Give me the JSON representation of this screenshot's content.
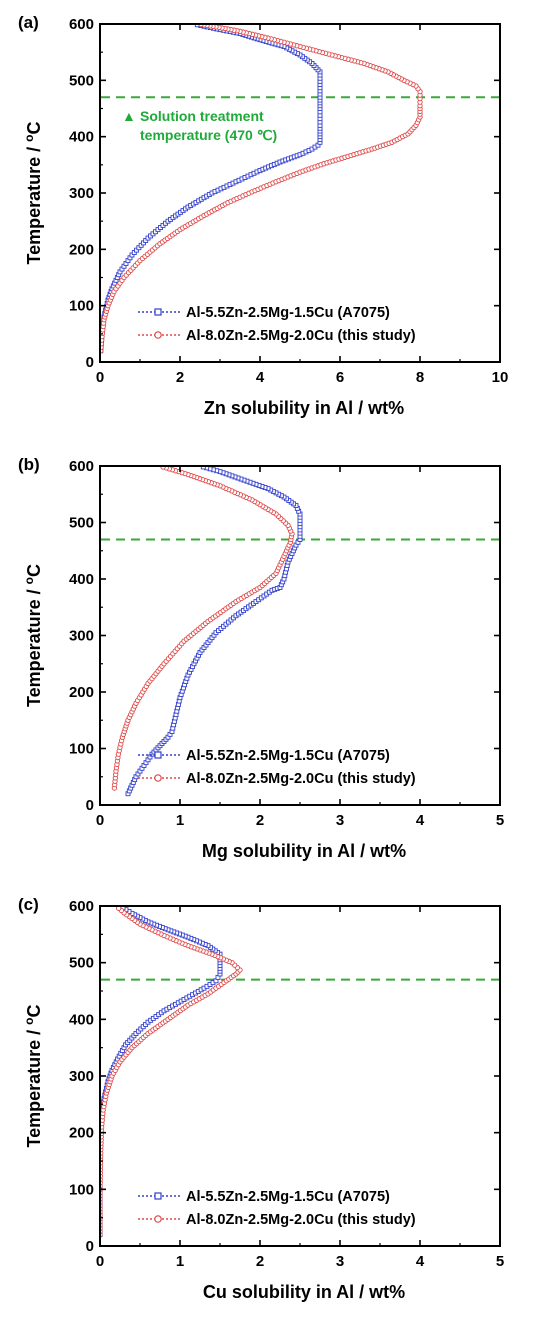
{
  "chart_data": [
    {
      "type": "line",
      "panel_label": "(a)",
      "xlabel": "Zn solubility in Al / wt%",
      "ylabel_main": "Temperature / ",
      "ylabel_sup": "o",
      "ylabel_unit": "C",
      "xlim": [
        0,
        10
      ],
      "ylim": [
        0,
        600
      ],
      "xticks": [
        0,
        2,
        4,
        6,
        8,
        10
      ],
      "yticks": [
        0,
        100,
        200,
        300,
        400,
        500,
        600
      ],
      "x_tick_labels": [
        "0",
        "2",
        "4",
        "6",
        "8",
        "10"
      ],
      "y_tick_labels": [
        "0",
        "100",
        "200",
        "300",
        "400",
        "500",
        "600"
      ],
      "legend_position": "bottom-right",
      "reference_line": {
        "y": 470,
        "color": "#3aa83a"
      },
      "annotation": {
        "line1": "Solution treatment",
        "line2": "temperature (470 ℃)",
        "marker": "▲",
        "color": "#1faa3a"
      },
      "series": [
        {
          "name": "Al-5.5Zn-2.5Mg-1.5Cu (A7075)",
          "color": "#3340cc",
          "marker": "square",
          "x": [
            0.02,
            0.05,
            0.1,
            0.2,
            0.3,
            0.5,
            0.8,
            1.2,
            1.7,
            2.2,
            2.8,
            3.4,
            4.0,
            4.5,
            5.0,
            5.3,
            5.45,
            5.5,
            5.5,
            5.5,
            5.5,
            5.5,
            5.5,
            5.3,
            5.0,
            4.6,
            4.0,
            3.5,
            3.0,
            2.6,
            2.35
          ],
          "y": [
            20,
            50,
            80,
            110,
            130,
            160,
            190,
            220,
            250,
            275,
            300,
            320,
            340,
            355,
            368,
            378,
            385,
            390,
            400,
            420,
            450,
            470,
            515,
            530,
            545,
            560,
            572,
            583,
            590,
            596,
            600
          ]
        },
        {
          "name": "Al-8.0Zn-2.5Mg-2.0Cu (this study)",
          "color": "#e04848",
          "marker": "circle",
          "x": [
            0.02,
            0.05,
            0.1,
            0.2,
            0.35,
            0.6,
            1.0,
            1.5,
            2.0,
            2.6,
            3.2,
            3.8,
            4.4,
            5.0,
            5.6,
            6.2,
            6.8,
            7.3,
            7.7,
            7.9,
            8.0,
            8.0,
            8.0,
            7.9,
            7.6,
            7.2,
            6.6,
            5.8,
            5.0,
            4.2,
            3.5,
            2.9,
            2.45
          ],
          "y": [
            20,
            45,
            75,
            100,
            125,
            150,
            180,
            210,
            235,
            260,
            283,
            302,
            320,
            337,
            352,
            365,
            378,
            390,
            405,
            420,
            435,
            455,
            480,
            490,
            500,
            515,
            530,
            545,
            560,
            575,
            587,
            595,
            600
          ]
        }
      ]
    },
    {
      "type": "line",
      "panel_label": "(b)",
      "xlabel": "Mg solubility in Al / wt%",
      "ylabel_main": "Temperature / ",
      "ylabel_sup": "o",
      "ylabel_unit": "C",
      "xlim": [
        0,
        5
      ],
      "ylim": [
        0,
        600
      ],
      "xticks": [
        0,
        1,
        2,
        3,
        4,
        5
      ],
      "yticks": [
        0,
        100,
        200,
        300,
        400,
        500,
        600
      ],
      "x_tick_labels": [
        "0",
        "1",
        "2",
        "3",
        "4",
        "5"
      ],
      "y_tick_labels": [
        "0",
        "100",
        "200",
        "300",
        "400",
        "500",
        "600"
      ],
      "legend_position": "bottom-right",
      "reference_line": {
        "y": 470,
        "color": "#3aa83a"
      },
      "series": [
        {
          "name": "Al-5.5Zn-2.5Mg-1.5Cu (A7075)",
          "color": "#3340cc",
          "marker": "square",
          "x": [
            0.35,
            0.45,
            0.55,
            0.65,
            0.75,
            0.85,
            0.9,
            0.95,
            1.0,
            1.1,
            1.25,
            1.45,
            1.7,
            1.95,
            2.15,
            2.25,
            2.3,
            2.35,
            2.45,
            2.5,
            2.5,
            2.45,
            2.3,
            2.1,
            1.8,
            1.5,
            1.25
          ],
          "y": [
            20,
            50,
            70,
            90,
            105,
            120,
            130,
            160,
            190,
            230,
            270,
            305,
            335,
            360,
            380,
            385,
            400,
            430,
            460,
            470,
            515,
            530,
            545,
            560,
            575,
            590,
            600
          ]
        },
        {
          "name": "Al-8.0Zn-2.5Mg-2.0Cu (this study)",
          "color": "#e04848",
          "marker": "circle",
          "x": [
            0.18,
            0.2,
            0.23,
            0.28,
            0.35,
            0.45,
            0.6,
            0.8,
            1.05,
            1.35,
            1.7,
            2.0,
            2.2,
            2.3,
            2.38,
            2.4,
            2.35,
            2.2,
            1.9,
            1.5,
            1.1,
            0.75
          ],
          "y": [
            30,
            60,
            90,
            120,
            150,
            180,
            215,
            250,
            290,
            325,
            360,
            385,
            410,
            440,
            465,
            480,
            495,
            515,
            540,
            565,
            585,
            600
          ]
        }
      ]
    },
    {
      "type": "line",
      "panel_label": "(c)",
      "xlabel": "Cu solubility in Al / wt%",
      "ylabel_main": "Temperature / ",
      "ylabel_sup": "o",
      "ylabel_unit": "C",
      "xlim": [
        0,
        5
      ],
      "ylim": [
        0,
        600
      ],
      "xticks": [
        0,
        1,
        2,
        3,
        4,
        5
      ],
      "yticks": [
        0,
        100,
        200,
        300,
        400,
        500,
        600
      ],
      "x_tick_labels": [
        "0",
        "1",
        "2",
        "3",
        "4",
        "5"
      ],
      "y_tick_labels": [
        "0",
        "100",
        "200",
        "300",
        "400",
        "500",
        "600"
      ],
      "legend_position": "bottom-right",
      "reference_line": {
        "y": 470,
        "color": "#3aa83a"
      },
      "series": [
        {
          "name": "Al-5.5Zn-2.5Mg-1.5Cu (A7075)",
          "color": "#3340cc",
          "marker": "square",
          "x": [
            0.0,
            0.0,
            0.0,
            0.01,
            0.02,
            0.05,
            0.1,
            0.15,
            0.22,
            0.32,
            0.45,
            0.6,
            0.8,
            1.05,
            1.3,
            1.45,
            1.5,
            1.5,
            1.5,
            1.35,
            1.1,
            0.85,
            0.6,
            0.4,
            0.25
          ],
          "y": [
            20,
            100,
            150,
            200,
            230,
            260,
            290,
            310,
            330,
            355,
            375,
            395,
            415,
            435,
            455,
            468,
            480,
            500,
            515,
            530,
            545,
            558,
            572,
            587,
            600
          ]
        },
        {
          "name": "Al-8.0Zn-2.5Mg-2.0Cu (this study)",
          "color": "#e04848",
          "marker": "circle",
          "x": [
            0.0,
            0.0,
            0.01,
            0.02,
            0.04,
            0.08,
            0.15,
            0.25,
            0.4,
            0.6,
            0.85,
            1.1,
            1.35,
            1.55,
            1.7,
            1.75,
            1.65,
            1.4,
            1.1,
            0.8,
            0.5,
            0.3,
            0.2
          ],
          "y": [
            20,
            100,
            170,
            210,
            240,
            270,
            300,
            325,
            350,
            375,
            400,
            425,
            445,
            465,
            480,
            487,
            500,
            515,
            530,
            548,
            568,
            588,
            600
          ]
        }
      ]
    }
  ]
}
